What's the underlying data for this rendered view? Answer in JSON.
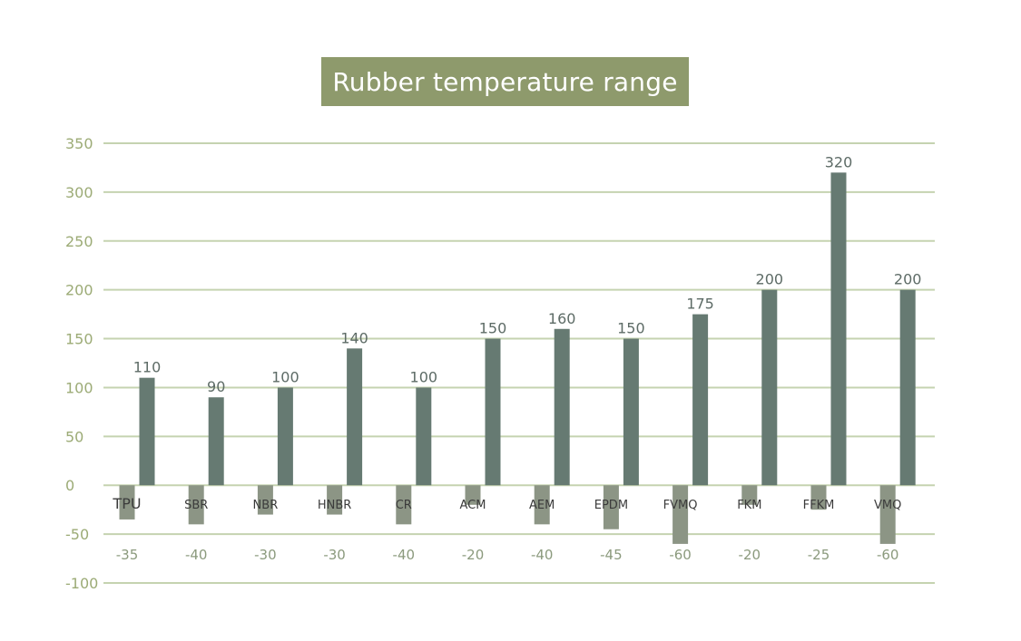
{
  "chart_data": {
    "type": "bar",
    "title": "Rubber temperature range",
    "categories": [
      "TPU",
      "SBR",
      "NBR",
      "HNBR",
      "CR",
      "ACM",
      "AEM",
      "EPDM",
      "FVMQ",
      "FKM",
      "FFKM",
      "VMQ"
    ],
    "series": [
      {
        "values": [
          -35,
          -40,
          -30,
          -30,
          -40,
          -20,
          -40,
          -45,
          -60,
          -20,
          -25,
          -60
        ]
      },
      {
        "values": [
          110,
          90,
          100,
          140,
          100,
          150,
          160,
          150,
          175,
          200,
          320,
          200
        ]
      }
    ],
    "ylim": [
      -100,
      350
    ],
    "yticks": [
      350,
      300,
      250,
      200,
      150,
      100,
      50,
      0,
      -50,
      -100
    ],
    "grid": true,
    "colors": {
      "max_bar": "#667a72",
      "min_bar": "#8c9585",
      "grid": "#c5d3b0",
      "title_bg": "#8e9a6c",
      "tick_text": "#9cab76"
    }
  }
}
